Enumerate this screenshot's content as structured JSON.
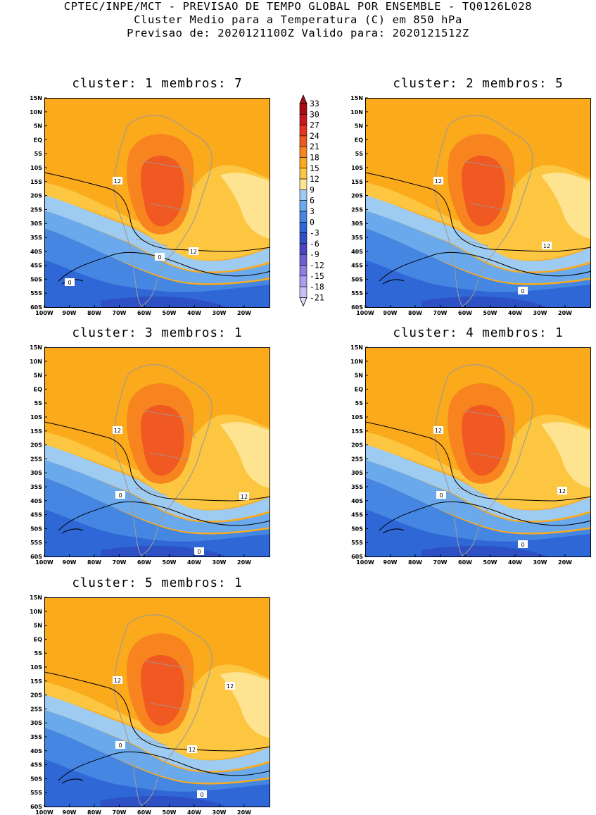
{
  "header": {
    "line1": "CPTEC/INPE/MCT - PREVISAO DE TEMPO GLOBAL POR ENSEMBLE - TQ0126L028",
    "line2": "Cluster Medio para a Temperatura (C) em 850 hPa",
    "line3": "Previsao de: 2020121100Z   Valido para: 2020121512Z"
  },
  "map_axes": {
    "lat_labels": [
      "15N",
      "10N",
      "5N",
      "EQ",
      "5S",
      "10S",
      "15S",
      "20S",
      "25S",
      "30S",
      "35S",
      "40S",
      "45S",
      "50S",
      "55S",
      "60S"
    ],
    "lon_labels": [
      "100W",
      "90W",
      "80W",
      "70W",
      "60W",
      "50W",
      "40W",
      "30W",
      "20W"
    ]
  },
  "colorbar": {
    "levels": [
      "33",
      "30",
      "27",
      "24",
      "21",
      "18",
      "15",
      "12",
      "9",
      "6",
      "3",
      "0",
      "-3",
      "-6",
      "-9",
      "-12",
      "-15",
      "-18",
      "-21"
    ],
    "colors": [
      "#a50f15",
      "#cb181d",
      "#e6341f",
      "#f05a22",
      "#f7841f",
      "#fbaa1c",
      "#fdc641",
      "#fee390",
      "#9ecbf2",
      "#6aa9ec",
      "#4586e3",
      "#2f67d6",
      "#2d50c4",
      "#4a44c2",
      "#6c5fd1",
      "#8d7ee0",
      "#ac9ded",
      "#c9bff5",
      "#e2dcfa"
    ]
  },
  "panels": [
    {
      "title": "cluster: 1   membros: 7",
      "clabels": [
        "12",
        "12",
        "0",
        "0"
      ]
    },
    {
      "title": "cluster: 2   membros: 5",
      "clabels": [
        "12",
        "12",
        "0"
      ]
    },
    {
      "title": "cluster: 3   membros: 1",
      "clabels": [
        "12",
        "12",
        "0",
        "0"
      ]
    },
    {
      "title": "cluster: 4   membros: 1",
      "clabels": [
        "12",
        "12",
        "0",
        "0"
      ]
    },
    {
      "title": "cluster: 5   membros: 1",
      "clabels": [
        "12",
        "12",
        "12",
        "0",
        "0"
      ]
    }
  ]
}
